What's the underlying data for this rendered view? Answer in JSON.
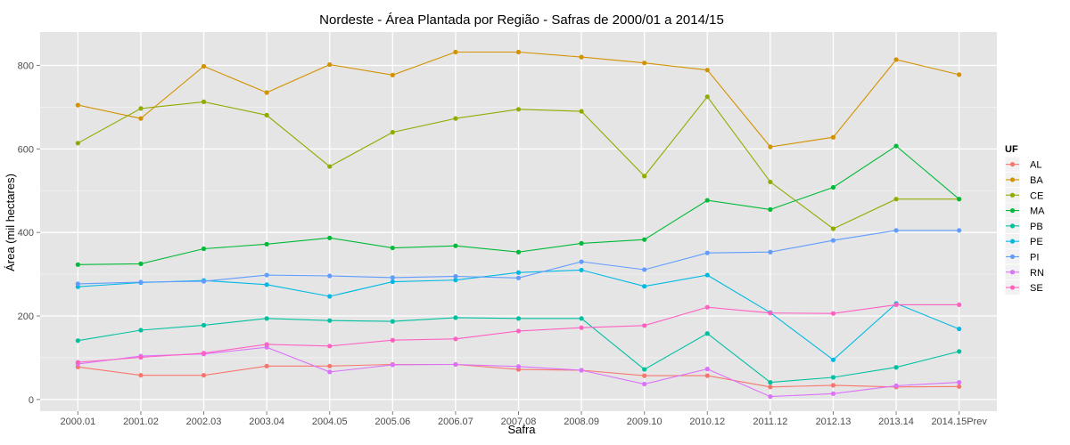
{
  "chart_data": {
    "type": "line",
    "title": "Nordeste  - Área Plantada por Região - Safras de 2000/01 a 2014/15",
    "xlabel": "Safra",
    "ylabel": "Área (mil hectares)",
    "categories": [
      "2000.01",
      "2001.02",
      "2002.03",
      "2003.04",
      "2004.05",
      "2005.06",
      "2006.07",
      "2007.08",
      "2008.09",
      "2009.10",
      "2010.12",
      "2011.12",
      "2012.13",
      "2013.14",
      "2014.15Prev"
    ],
    "ylim": [
      -28,
      880
    ],
    "yticks": [
      0,
      200,
      400,
      600,
      800
    ],
    "grid": true,
    "legend": {
      "title": "UF",
      "position": "right"
    },
    "series": [
      {
        "name": "AL",
        "color": "#F8766D",
        "values": [
          78,
          58,
          58,
          80,
          80,
          84,
          84,
          72,
          70,
          57,
          57,
          30,
          34,
          30,
          31
        ]
      },
      {
        "name": "BA",
        "color": "#D39200",
        "values": [
          705,
          673,
          798,
          735,
          802,
          777,
          832,
          832,
          820,
          806,
          789,
          605,
          628,
          814,
          778
        ]
      },
      {
        "name": "CE",
        "color": "#93AA00",
        "values": [
          614,
          697,
          713,
          681,
          558,
          640,
          673,
          695,
          690,
          535,
          725,
          521,
          409,
          480,
          480
        ]
      },
      {
        "name": "MA",
        "color": "#00BA38",
        "values": [
          323,
          325,
          361,
          372,
          387,
          363,
          368,
          353,
          374,
          383,
          477,
          455,
          508,
          607,
          480
        ]
      },
      {
        "name": "PB",
        "color": "#00C19F",
        "values": [
          141,
          166,
          178,
          194,
          189,
          187,
          196,
          194,
          194,
          72,
          158,
          41,
          53,
          77,
          115
        ]
      },
      {
        "name": "PE",
        "color": "#00B9E3",
        "values": [
          270,
          280,
          285,
          275,
          247,
          282,
          286,
          304,
          310,
          271,
          298,
          208,
          95,
          230,
          169
        ]
      },
      {
        "name": "PI",
        "color": "#619CFF",
        "values": [
          277,
          281,
          283,
          298,
          296,
          292,
          295,
          291,
          330,
          311,
          351,
          353,
          381,
          405,
          405
        ]
      },
      {
        "name": "RN",
        "color": "#DB72FB",
        "values": [
          85,
          104,
          109,
          125,
          66,
          83,
          84,
          79,
          70,
          37,
          73,
          7,
          14,
          33,
          41
        ]
      },
      {
        "name": "SE",
        "color": "#FF61C3",
        "values": [
          89,
          101,
          111,
          132,
          128,
          142,
          145,
          164,
          172,
          177,
          221,
          207,
          206,
          227,
          227
        ]
      }
    ]
  }
}
